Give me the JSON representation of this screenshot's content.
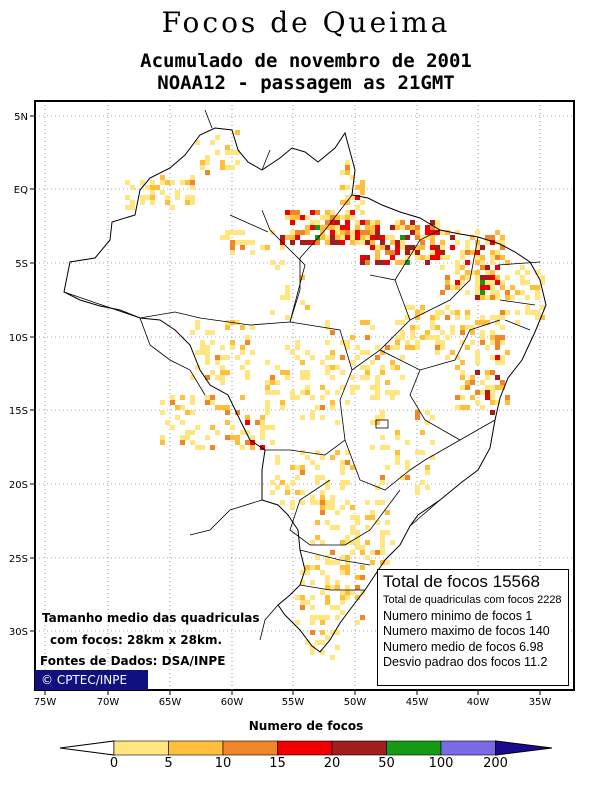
{
  "title": "Focos de Queima",
  "subtitle1": "Acumulado de novembro de 2001",
  "subtitle2": "NOAA12 - passagem as 21GMT",
  "lat_labels": [
    "5N",
    "EQ",
    "5S",
    "10S",
    "15S",
    "20S",
    "25S",
    "30S"
  ],
  "lon_labels": [
    "75W",
    "70W",
    "65W",
    "60W",
    "55W",
    "50W",
    "45W",
    "40W",
    "35W"
  ],
  "stats": {
    "total": "Total de focos 15568",
    "quadriculas": "Total de quadriculas com focos 2228",
    "min": "Numero minimo de focos 1",
    "max": "Numero maximo de focos 140",
    "mean": "Numero medio de focos 6.98",
    "std": "Desvio padrao dos focos 11.2"
  },
  "notes": {
    "size_line1": "Tamanho medio das quadriculas",
    "size_line2": "com focos: 28km x 28km.",
    "source": "Fontes de Dados: DSA/INPE",
    "credit": "© CPTEC/INPE"
  },
  "legend": {
    "title": "Numero de focos",
    "ticks": [
      "0",
      "5",
      "10",
      "15",
      "20",
      "50",
      "100",
      "200"
    ],
    "colors": [
      "#ffe680",
      "#ffbf3c",
      "#f0862a",
      "#f00000",
      "#a01e1e",
      "#169a16",
      "#7a6ae6"
    ]
  }
}
